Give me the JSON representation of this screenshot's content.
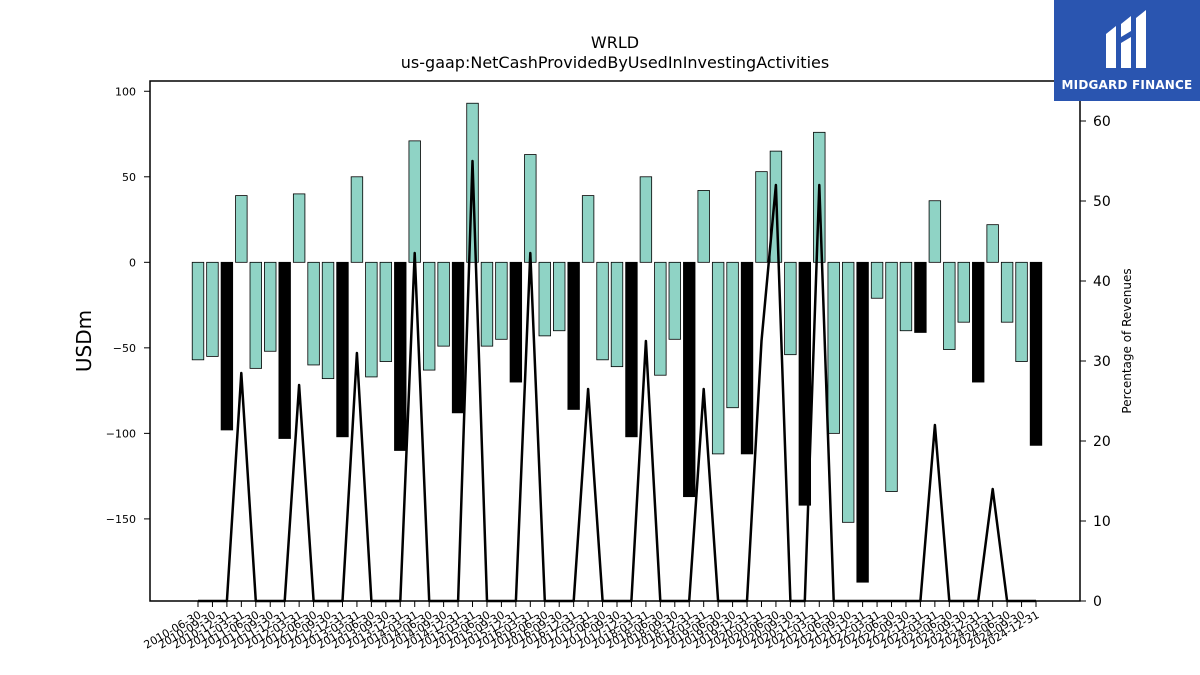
{
  "logo": {
    "text": "MIDGARD FINANCE",
    "icon": "midgard-m-logo-icon",
    "background": "#2a55b0"
  },
  "chart_data": {
    "type": "bar",
    "title": "WRLD",
    "subtitle": "us-gaap:NetCashProvidedByUsedInInvestingActivities",
    "ylabel": "USDm",
    "y2label": "Percentage of Revenues",
    "ylim": [
      -198,
      106
    ],
    "y2lim": [
      0,
      65
    ],
    "yticks": [
      100,
      50,
      0,
      -50,
      -100,
      -150
    ],
    "y2ticks": [
      0,
      10,
      20,
      30,
      40,
      50,
      60
    ],
    "colors": {
      "quarter": "#8fd3c5",
      "annual": "#000000",
      "line": "#000000"
    },
    "categories": [
      "2010-06-30",
      "2010-09-30",
      "2010-12-31",
      "2011-03-31",
      "2011-06-30",
      "2011-09-30",
      "2011-12-31",
      "2012-03-31",
      "2012-06-30",
      "2012-09-30",
      "2012-12-31",
      "2013-03-31",
      "2013-06-30",
      "2013-09-30",
      "2013-12-31",
      "2014-03-31",
      "2014-06-30",
      "2014-09-30",
      "2014-12-31",
      "2015-03-31",
      "2015-06-30",
      "2015-09-30",
      "2015-12-31",
      "2016-03-31",
      "2016-06-30",
      "2016-09-30",
      "2016-12-31",
      "2017-03-31",
      "2017-06-30",
      "2017-09-30",
      "2017-12-31",
      "2018-03-31",
      "2018-06-30",
      "2018-09-30",
      "2018-12-31",
      "2019-03-31",
      "2019-06-30",
      "2019-09-30",
      "2019-12-31",
      "2020-03-31",
      "2020-06-30",
      "2020-09-30",
      "2020-12-31",
      "2021-03-31",
      "2021-06-30",
      "2021-09-30",
      "2021-12-31",
      "2022-03-31",
      "2022-06-30",
      "2022-09-30",
      "2022-12-31",
      "2023-03-31",
      "2023-06-30",
      "2023-09-30",
      "2023-12-31",
      "2024-03-31",
      "2024-06-30",
      "2024-09-30",
      "2024-12-31"
    ],
    "series": [
      {
        "values": [
          -57,
          -55,
          -98,
          39,
          -62,
          -52,
          -103,
          40,
          -60,
          -68,
          -102,
          50,
          -67,
          -58,
          -110,
          71,
          -63,
          -49,
          -88,
          93,
          -49,
          -45,
          -70,
          63,
          -43,
          -40,
          -86,
          39,
          -57,
          -61,
          -102,
          50,
          -66,
          -45,
          -137,
          42,
          -112,
          -85,
          -112,
          53,
          65,
          -54,
          -142,
          76,
          -100,
          -152,
          -187,
          -21,
          -134,
          -40,
          -41,
          36,
          -51,
          -35,
          -70,
          22,
          -35,
          -58,
          -107
        ],
        "annual": [
          false,
          false,
          true,
          false,
          false,
          false,
          true,
          false,
          false,
          false,
          true,
          false,
          false,
          false,
          true,
          false,
          false,
          false,
          true,
          false,
          false,
          false,
          true,
          false,
          false,
          false,
          true,
          false,
          false,
          false,
          true,
          false,
          false,
          false,
          true,
          false,
          false,
          false,
          true,
          false,
          false,
          false,
          true,
          false,
          false,
          false,
          true,
          false,
          false,
          false,
          true,
          false,
          false,
          false,
          true,
          false,
          false,
          false,
          true
        ]
      },
      {
        "name": "Percentage of Revenues",
        "axis": "right",
        "type": "line",
        "values": [
          0,
          0,
          0,
          28.5,
          0,
          0,
          0,
          27,
          0,
          0,
          0,
          31,
          0,
          0,
          0,
          43.5,
          0,
          0,
          0,
          55,
          0,
          0,
          0,
          43.5,
          0,
          0,
          0,
          26.5,
          0,
          0,
          0,
          32.5,
          0,
          0,
          0,
          26.5,
          0,
          0,
          0,
          32.5,
          52,
          0,
          0,
          52,
          0,
          0,
          0,
          0,
          0,
          0,
          0,
          22,
          0,
          0,
          0,
          14,
          0,
          0,
          0
        ]
      }
    ]
  }
}
